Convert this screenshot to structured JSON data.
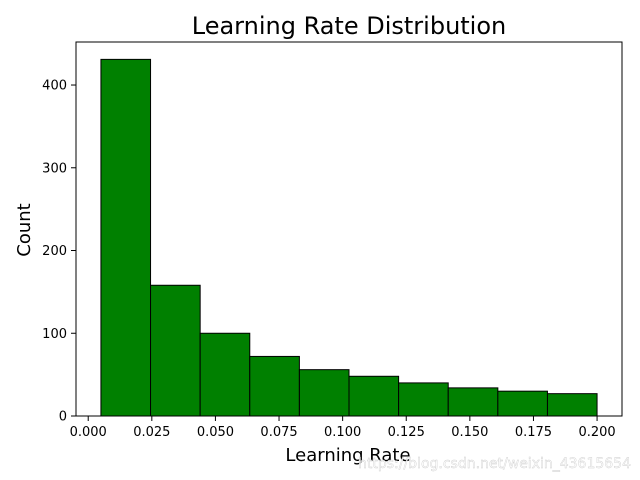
{
  "chart_data": {
    "type": "bar",
    "title": "Learning Rate Distribution",
    "xlabel": "Learning Rate",
    "ylabel": "Count",
    "bin_edges": [
      0.005,
      0.0245,
      0.044,
      0.0635,
      0.083,
      0.1025,
      0.122,
      0.1415,
      0.161,
      0.1805,
      0.2
    ],
    "values": [
      431,
      158,
      100,
      72,
      56,
      48,
      40,
      34,
      30,
      27
    ],
    "xlim": [
      -0.0048,
      0.2098
    ],
    "ylim": [
      0,
      452
    ],
    "xticks": [
      0.0,
      0.025,
      0.05,
      0.075,
      0.1,
      0.125,
      0.15,
      0.175,
      0.2
    ],
    "xtick_labels": [
      "0.000",
      "0.025",
      "0.050",
      "0.075",
      "0.100",
      "0.125",
      "0.150",
      "0.175",
      "0.200"
    ],
    "yticks": [
      0,
      100,
      200,
      300,
      400
    ],
    "ytick_labels": [
      "0",
      "100",
      "200",
      "300",
      "400"
    ],
    "bar_color": "#008000",
    "edge_color": "#000000",
    "grid": false,
    "legend": false
  },
  "watermark": "https://blog.csdn.net/weixin_43615654"
}
